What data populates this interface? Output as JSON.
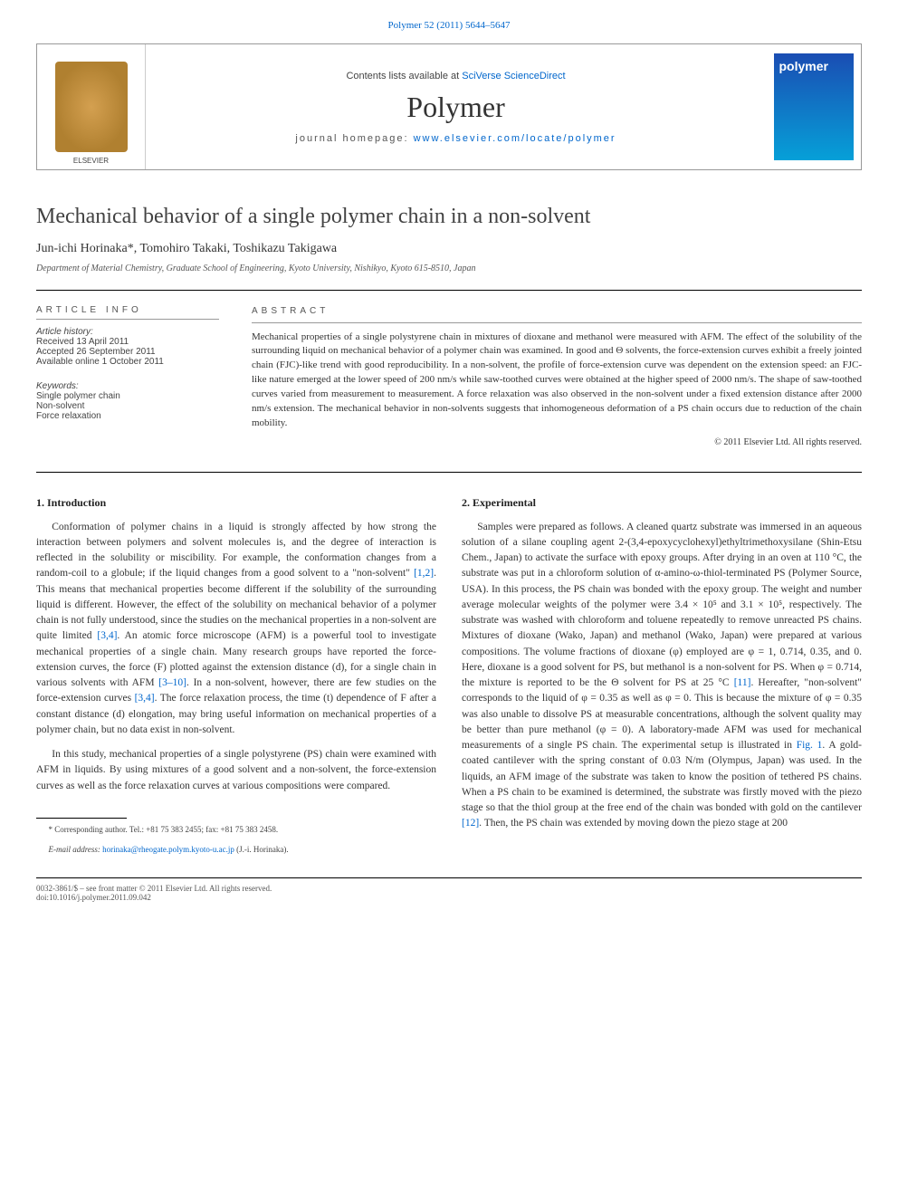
{
  "header": {
    "citation_link": "Polymer 52 (2011) 5644–5647"
  },
  "masthead": {
    "contents_prefix": "Contents lists available at ",
    "contents_link": "SciVerse ScienceDirect",
    "journal_name": "Polymer",
    "homepage_prefix": "journal homepage: ",
    "homepage_link": "www.elsevier.com/locate/polymer",
    "cover_label": "polymer",
    "elsevier": "ELSEVIER"
  },
  "article": {
    "title": "Mechanical behavior of a single polymer chain in a non-solvent",
    "authors_html": "Jun-ichi Horinaka*, Tomohiro Takaki, Toshikazu Takigawa",
    "affiliation": "Department of Material Chemistry, Graduate School of Engineering, Kyoto University, Nishikyo, Kyoto 615-8510, Japan"
  },
  "info": {
    "heading": "ARTICLE INFO",
    "history_label": "Article history:",
    "received": "Received 13 April 2011",
    "accepted": "Accepted 26 September 2011",
    "online": "Available online 1 October 2011",
    "keywords_label": "Keywords:",
    "kw1": "Single polymer chain",
    "kw2": "Non-solvent",
    "kw3": "Force relaxation"
  },
  "abstract": {
    "heading": "ABSTRACT",
    "text": "Mechanical properties of a single polystyrene chain in mixtures of dioxane and methanol were measured with AFM. The effect of the solubility of the surrounding liquid on mechanical behavior of a polymer chain was examined. In good and Θ solvents, the force-extension curves exhibit a freely jointed chain (FJC)-like trend with good reproducibility. In a non-solvent, the profile of force-extension curve was dependent on the extension speed: an FJC-like nature emerged at the lower speed of 200 nm/s while saw-toothed curves were obtained at the higher speed of 2000 nm/s. The shape of saw-toothed curves varied from measurement to measurement. A force relaxation was also observed in the non-solvent under a fixed extension distance after 2000 nm/s extension. The mechanical behavior in non-solvents suggests that inhomogeneous deformation of a PS chain occurs due to reduction of the chain mobility.",
    "copyright": "© 2011 Elsevier Ltd. All rights reserved."
  },
  "body": {
    "intro_heading": "1. Introduction",
    "intro_p1": "Conformation of polymer chains in a liquid is strongly affected by how strong the interaction between polymers and solvent molecules is, and the degree of interaction is reflected in the solubility or miscibility. For example, the conformation changes from a random-coil to a globule; if the liquid changes from a good solvent to a \"non-solvent\" ",
    "intro_ref1": "[1,2]",
    "intro_p1b": ". This means that mechanical properties become different if the solubility of the surrounding liquid is different. However, the effect of the solubility on mechanical behavior of a polymer chain is not fully understood, since the studies on the mechanical properties in a non-solvent are quite limited ",
    "intro_ref2": "[3,4]",
    "intro_p1c": ". An atomic force microscope (AFM) is a powerful tool to investigate mechanical properties of a single chain. Many research groups have reported the force-extension curves, the force (F) plotted against the extension distance (d), for a single chain in various solvents with AFM ",
    "intro_ref3": "[3–10]",
    "intro_p1d": ". In a non-solvent, however, there are few studies on the force-extension curves ",
    "intro_ref4": "[3,4]",
    "intro_p1e": ". The force relaxation process, the time (t) dependence of F after a constant distance (d) elongation, may bring useful information on mechanical properties of a polymer chain, but no data exist in non-solvent.",
    "intro_p2": "In this study, mechanical properties of a single polystyrene (PS) chain were examined with AFM in liquids. By using mixtures of a good solvent and a non-solvent, the force-extension curves as well as the force relaxation curves at various compositions were compared.",
    "exp_heading": "2. Experimental",
    "exp_p1a": "Samples were prepared as follows. A cleaned quartz substrate was immersed in an aqueous solution of a silane coupling agent 2-(3,4-epoxycyclohexyl)ethyltrimethoxysilane (Shin-Etsu Chem., Japan) to activate the surface with epoxy groups. After drying in an oven at 110 °C, the substrate was put in a chloroform solution of α-amino-ω-thiol-terminated PS (Polymer Source, USA). In this process, the PS chain was bonded with the epoxy group. The weight and number average molecular weights of the polymer were 3.4 × 10⁵ and 3.1 × 10⁵, respectively. The substrate was washed with chloroform and toluene repeatedly to remove unreacted PS chains. Mixtures of dioxane (Wako, Japan) and methanol (Wako, Japan) were prepared at various compositions. The volume fractions of dioxane (φ) employed are φ = 1, 0.714, 0.35, and 0. Here, dioxane is a good solvent for PS, but methanol is a non-solvent for PS. When φ = 0.714, the mixture is reported to be the Θ solvent for PS at 25 °C ",
    "exp_ref1": "[11]",
    "exp_p1b": ". Hereafter, \"non-solvent\" corresponds to the liquid of φ = 0.35 as well as φ = 0. This is because the mixture of φ = 0.35 was also unable to dissolve PS at measurable concentrations, although the solvent quality may be better than pure methanol (φ = 0). A laboratory-made AFM was used for mechanical measurements of a single PS chain. The experimental setup is illustrated in ",
    "exp_fig1": "Fig. 1",
    "exp_p1c": ". A gold-coated cantilever with the spring constant of 0.03 N/m (Olympus, Japan) was used. In the liquids, an AFM image of the substrate was taken to know the position of tethered PS chains. When a PS chain to be examined is determined, the substrate was firstly moved with the piezo stage so that the thiol group at the free end of the chain was bonded with gold on the cantilever ",
    "exp_ref2": "[12]",
    "exp_p1d": ". Then, the PS chain was extended by moving down the piezo stage at 200"
  },
  "footnote": {
    "corr": "* Corresponding author. Tel.: +81 75 383 2455; fax: +81 75 383 2458.",
    "email_label": "E-mail address: ",
    "email": "horinaka@rheogate.polym.kyoto-u.ac.jp",
    "email_suffix": " (J.-i. Horinaka)."
  },
  "footer": {
    "line1": "0032-3861/$ – see front matter © 2011 Elsevier Ltd. All rights reserved.",
    "line2": "doi:10.1016/j.polymer.2011.09.042"
  },
  "colors": {
    "link": "#0066cc",
    "rule": "#000000",
    "text": "#333333",
    "cover_grad_top": "#1a4db3",
    "cover_grad_bottom": "#06a0d8"
  }
}
